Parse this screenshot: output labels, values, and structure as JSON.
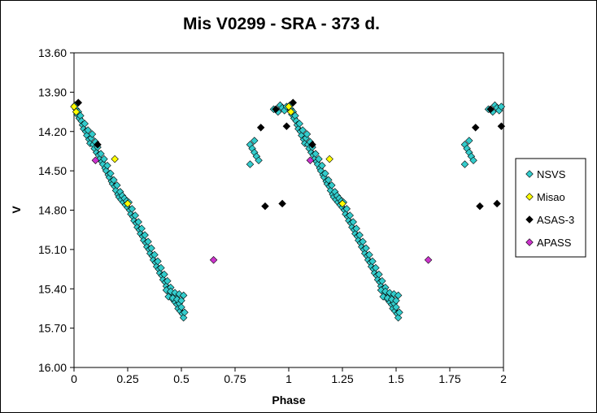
{
  "chart_data": {
    "type": "scatter",
    "title": "Mis V0299 - SRA - 373 d.",
    "xlabel": "Phase",
    "ylabel": "V",
    "xlim": [
      0,
      2
    ],
    "ylim": [
      16.0,
      13.6
    ],
    "y_inverted": true,
    "x_ticks": [
      "0",
      "0.25",
      "0.5",
      "0.75",
      "1",
      "1.25",
      "1.5",
      "1.75",
      "2"
    ],
    "y_ticks": [
      "13.60",
      "13.90",
      "14.20",
      "14.50",
      "14.80",
      "15.10",
      "15.40",
      "15.70",
      "16.00"
    ],
    "grid": false,
    "legend_position": "right",
    "series": [
      {
        "name": "NSVS",
        "color": "#33cccc",
        "marker": "diamond",
        "x": [
          0.005,
          0.01,
          0.015,
          0.02,
          0.025,
          0.03,
          0.035,
          0.04,
          0.045,
          0.05,
          0.055,
          0.06,
          0.065,
          0.07,
          0.075,
          0.08,
          0.085,
          0.09,
          0.095,
          0.1,
          0.105,
          0.11,
          0.115,
          0.12,
          0.125,
          0.13,
          0.135,
          0.14,
          0.145,
          0.15,
          0.155,
          0.16,
          0.165,
          0.17,
          0.175,
          0.18,
          0.185,
          0.19,
          0.195,
          0.2,
          0.205,
          0.21,
          0.215,
          0.22,
          0.225,
          0.23,
          0.235,
          0.24,
          0.245,
          0.25,
          0.255,
          0.26,
          0.265,
          0.27,
          0.275,
          0.28,
          0.285,
          0.29,
          0.295,
          0.3,
          0.305,
          0.31,
          0.315,
          0.32,
          0.325,
          0.33,
          0.335,
          0.34,
          0.345,
          0.35,
          0.355,
          0.36,
          0.365,
          0.37,
          0.375,
          0.38,
          0.385,
          0.39,
          0.395,
          0.4,
          0.405,
          0.41,
          0.415,
          0.42,
          0.425,
          0.43,
          0.435,
          0.44,
          0.445,
          0.45,
          0.455,
          0.46,
          0.465,
          0.47,
          0.475,
          0.48,
          0.485,
          0.49,
          0.495,
          0.5,
          0.505,
          0.51,
          0.515,
          0.43,
          0.45,
          0.47,
          0.49,
          0.51,
          0.44,
          0.46,
          0.48,
          0.5,
          0.82,
          0.83,
          0.84,
          0.85,
          0.86,
          0.82,
          0.84,
          0.93,
          0.95,
          0.96,
          0.97,
          0.98,
          0.99,
          1.005,
          1.01,
          1.015,
          1.02,
          1.025,
          1.03,
          1.035,
          1.04,
          1.045,
          1.05,
          1.055,
          1.06,
          1.065,
          1.07,
          1.075,
          1.08,
          1.085,
          1.09,
          1.095,
          1.1,
          1.105,
          1.11,
          1.115,
          1.12,
          1.125,
          1.13,
          1.135,
          1.14,
          1.145,
          1.15,
          1.155,
          1.16,
          1.165,
          1.17,
          1.175,
          1.18,
          1.185,
          1.19,
          1.195,
          1.2,
          1.205,
          1.21,
          1.215,
          1.22,
          1.225,
          1.23,
          1.235,
          1.24,
          1.245,
          1.25,
          1.255,
          1.26,
          1.265,
          1.27,
          1.275,
          1.28,
          1.285,
          1.29,
          1.295,
          1.3,
          1.305,
          1.31,
          1.315,
          1.32,
          1.325,
          1.33,
          1.335,
          1.34,
          1.345,
          1.35,
          1.355,
          1.36,
          1.365,
          1.37,
          1.375,
          1.38,
          1.385,
          1.39,
          1.395,
          1.4,
          1.405,
          1.41,
          1.415,
          1.42,
          1.425,
          1.43,
          1.435,
          1.44,
          1.445,
          1.45,
          1.455,
          1.46,
          1.465,
          1.47,
          1.475,
          1.48,
          1.485,
          1.49,
          1.495,
          1.5,
          1.505,
          1.51,
          1.515,
          1.43,
          1.45,
          1.47,
          1.49,
          1.51,
          1.44,
          1.46,
          1.48,
          1.5,
          1.82,
          1.83,
          1.84,
          1.85,
          1.86,
          1.82,
          1.84,
          1.93,
          1.95,
          1.96,
          1.97,
          1.98,
          1.99
        ],
        "y": [
          14.0,
          14.03,
          14.07,
          14.05,
          14.1,
          14.08,
          14.12,
          14.15,
          14.18,
          14.14,
          14.2,
          14.23,
          14.19,
          14.26,
          14.29,
          14.25,
          14.22,
          14.3,
          14.33,
          14.28,
          14.36,
          14.32,
          14.38,
          14.41,
          14.37,
          14.43,
          14.45,
          14.41,
          14.48,
          14.5,
          14.46,
          14.53,
          14.55,
          14.52,
          14.58,
          14.6,
          14.57,
          14.62,
          14.65,
          14.61,
          14.68,
          14.7,
          14.66,
          14.72,
          14.69,
          14.74,
          14.71,
          14.76,
          14.73,
          14.78,
          14.74,
          14.8,
          14.83,
          14.79,
          14.85,
          14.88,
          14.84,
          14.9,
          14.93,
          14.89,
          14.95,
          14.98,
          14.94,
          15.0,
          15.03,
          14.99,
          15.05,
          15.08,
          15.04,
          15.1,
          15.13,
          15.09,
          15.15,
          15.18,
          15.14,
          15.2,
          15.23,
          15.19,
          15.25,
          15.28,
          15.24,
          15.3,
          15.33,
          15.29,
          15.35,
          15.38,
          15.34,
          15.4,
          15.43,
          15.39,
          15.45,
          15.48,
          15.44,
          15.5,
          15.47,
          15.52,
          15.55,
          15.51,
          15.57,
          15.54,
          15.59,
          15.62,
          15.58,
          15.41,
          15.42,
          15.43,
          15.44,
          15.45,
          15.46,
          15.47,
          15.48,
          15.49,
          14.3,
          14.33,
          14.36,
          14.39,
          14.42,
          14.45,
          14.27,
          14.03,
          14.05,
          14.0,
          14.02,
          14.04,
          14.01,
          14.0,
          14.03,
          14.07,
          14.05,
          14.1,
          14.08,
          14.12,
          14.15,
          14.18,
          14.14,
          14.2,
          14.23,
          14.19,
          14.26,
          14.29,
          14.25,
          14.22,
          14.3,
          14.33,
          14.28,
          14.36,
          14.32,
          14.38,
          14.41,
          14.37,
          14.43,
          14.45,
          14.41,
          14.48,
          14.5,
          14.46,
          14.53,
          14.55,
          14.52,
          14.58,
          14.6,
          14.57,
          14.62,
          14.65,
          14.61,
          14.68,
          14.7,
          14.66,
          14.72,
          14.69,
          14.74,
          14.71,
          14.76,
          14.73,
          14.78,
          14.74,
          14.8,
          14.83,
          14.79,
          14.85,
          14.88,
          14.84,
          14.9,
          14.93,
          14.89,
          14.95,
          14.98,
          14.94,
          15.0,
          15.03,
          14.99,
          15.05,
          15.08,
          15.04,
          15.1,
          15.13,
          15.09,
          15.15,
          15.18,
          15.14,
          15.2,
          15.23,
          15.19,
          15.25,
          15.28,
          15.24,
          15.3,
          15.33,
          15.29,
          15.35,
          15.38,
          15.34,
          15.4,
          15.43,
          15.39,
          15.45,
          15.48,
          15.44,
          15.5,
          15.47,
          15.52,
          15.55,
          15.51,
          15.57,
          15.54,
          15.59,
          15.62,
          15.58,
          15.41,
          15.42,
          15.43,
          15.44,
          15.45,
          15.46,
          15.47,
          15.48,
          15.49,
          14.3,
          14.33,
          14.36,
          14.39,
          14.42,
          14.45,
          14.27,
          14.03,
          14.05,
          14.0,
          14.02,
          14.04,
          14.01
        ]
      },
      {
        "name": "Misao",
        "color": "#ffff00",
        "marker": "diamond",
        "x": [
          0.0,
          0.01,
          0.19,
          0.25,
          1.0,
          1.01,
          1.19,
          1.25
        ],
        "y": [
          14.01,
          14.05,
          14.41,
          14.75,
          14.01,
          14.05,
          14.41,
          14.75
        ]
      },
      {
        "name": "ASAS-3",
        "color": "#000000",
        "marker": "diamond",
        "x": [
          0.02,
          0.11,
          0.87,
          0.89,
          0.94,
          0.97,
          0.99,
          1.02,
          1.11,
          1.87,
          1.89,
          1.94,
          1.97,
          1.99
        ],
        "y": [
          13.98,
          14.3,
          14.17,
          14.77,
          14.03,
          14.75,
          14.16,
          13.98,
          14.3,
          14.17,
          14.77,
          14.03,
          14.75,
          14.16
        ]
      },
      {
        "name": "APASS",
        "color": "#cc33cc",
        "marker": "diamond",
        "x": [
          0.1,
          0.65,
          1.1,
          1.65
        ],
        "y": [
          14.42,
          15.18,
          14.42,
          15.18
        ]
      }
    ]
  }
}
